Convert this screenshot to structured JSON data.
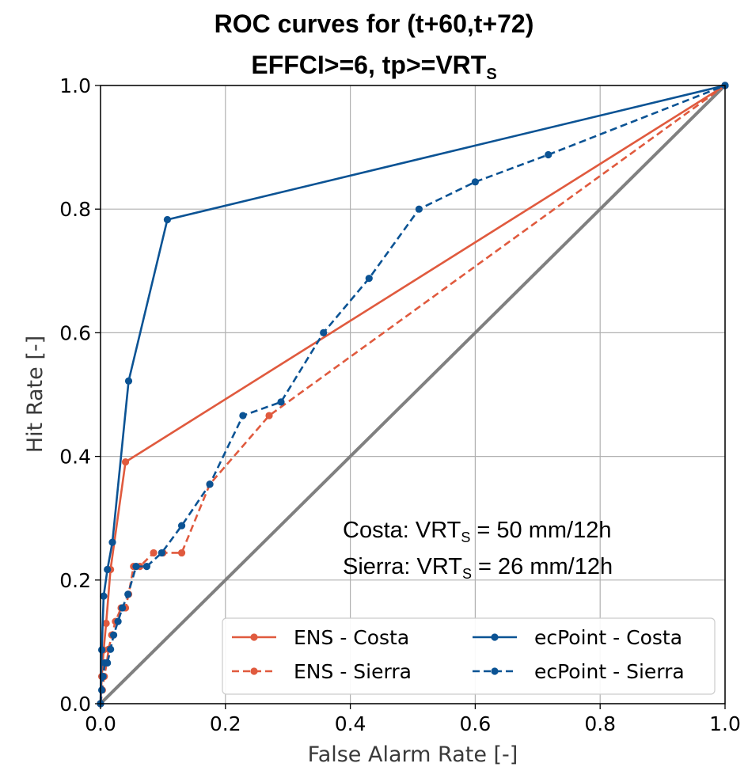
{
  "title_line1": "ROC curves for (t+60,t+72)",
  "title_line2_prefix": "EFFCI>=6, tp>=VRT",
  "title_line2_sub": "S",
  "annotations": [
    {
      "prefix": "Costa: VRT",
      "sub": "S",
      "suffix": " = 50 mm/12h"
    },
    {
      "prefix": "Sierra: VRT",
      "sub": "S",
      "suffix": " = 26 mm/12h"
    }
  ],
  "colors": {
    "ens": "#e05a3e",
    "ecpoint": "#0b5394",
    "diagonal": "#808080",
    "grid": "#b0b0b0"
  },
  "chart_data": {
    "type": "line",
    "xlabel": "False Alarm Rate [-]",
    "ylabel": "Hit Rate [-]",
    "xlim": [
      0,
      1
    ],
    "ylim": [
      0,
      1
    ],
    "xticks": [
      "0.0",
      "0.2",
      "0.4",
      "0.6",
      "0.8",
      "1.0"
    ],
    "yticks": [
      "0.0",
      "0.2",
      "0.4",
      "0.6",
      "0.8",
      "1.0"
    ],
    "grid": true,
    "legend_position": "bottom-right",
    "diagonal": {
      "x": [
        0,
        1
      ],
      "y": [
        0,
        1
      ]
    },
    "series": [
      {
        "name": "ENS - Costa",
        "style": "solid",
        "color": "#e05a3e",
        "x": [
          0,
          0.002,
          0.005,
          0.009,
          0.016,
          0.04,
          1.0
        ],
        "y": [
          0,
          0.044,
          0.087,
          0.13,
          0.217,
          0.391,
          1.0
        ]
      },
      {
        "name": "ENS - Sierra",
        "style": "dashed",
        "color": "#e05a3e",
        "x": [
          0,
          0.003,
          0.006,
          0.01,
          0.013,
          0.018,
          0.024,
          0.033,
          0.04,
          0.045,
          0.053,
          0.063,
          0.085,
          0.1,
          0.13,
          0.175,
          0.27,
          1.0
        ],
        "y": [
          0,
          0.022,
          0.044,
          0.066,
          0.088,
          0.111,
          0.133,
          0.155,
          0.155,
          0.177,
          0.222,
          0.222,
          0.244,
          0.244,
          0.244,
          0.355,
          0.466,
          1.0
        ]
      },
      {
        "name": "ecPoint - Costa",
        "style": "solid",
        "color": "#0b5394",
        "x": [
          0,
          0.002,
          0.005,
          0.011,
          0.019,
          0.045,
          0.107,
          1.0
        ],
        "y": [
          0,
          0.087,
          0.174,
          0.217,
          0.261,
          0.522,
          0.783,
          1.0
        ]
      },
      {
        "name": "ecPoint - Sierra",
        "style": "dashed",
        "color": "#0b5394",
        "x": [
          0,
          0.002,
          0.004,
          0.007,
          0.011,
          0.016,
          0.021,
          0.028,
          0.035,
          0.044,
          0.057,
          0.074,
          0.098,
          0.13,
          0.175,
          0.228,
          0.289,
          0.357,
          0.43,
          0.51,
          0.6,
          0.717,
          1.0
        ],
        "y": [
          0,
          0.022,
          0.044,
          0.066,
          0.066,
          0.088,
          0.111,
          0.133,
          0.155,
          0.177,
          0.222,
          0.222,
          0.244,
          0.288,
          0.355,
          0.466,
          0.488,
          0.6,
          0.688,
          0.8,
          0.844,
          0.888,
          1.0
        ]
      }
    ]
  }
}
